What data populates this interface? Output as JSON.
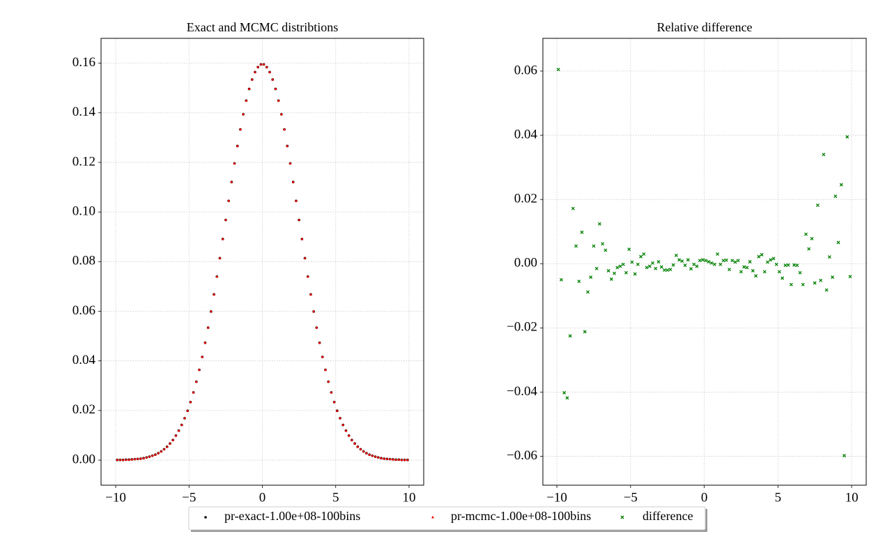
{
  "chart_data": [
    {
      "type": "scatter",
      "title": "Exact and MCMC distribtions",
      "x": [
        -9.9,
        -9.7,
        -9.5,
        -9.3,
        -9.1,
        -8.9,
        -8.7,
        -8.5,
        -8.3,
        -8.1,
        -7.9,
        -7.7,
        -7.5,
        -7.3,
        -7.1,
        -6.9,
        -6.7,
        -6.5,
        -6.3,
        -6.1,
        -5.9,
        -5.7,
        -5.5,
        -5.3,
        -5.1,
        -4.9,
        -4.7,
        -4.5,
        -4.3,
        -4.1,
        -3.9,
        -3.7,
        -3.5,
        -3.3,
        -3.1,
        -2.9,
        -2.7,
        -2.5,
        -2.3,
        -2.1,
        -1.9,
        -1.7,
        -1.5,
        -1.3,
        -1.1,
        -0.9,
        -0.7,
        -0.5,
        -0.3,
        -0.1,
        0.1,
        0.3,
        0.5,
        0.7,
        0.9,
        1.1,
        1.3,
        1.5,
        1.7,
        1.9,
        2.1,
        2.3,
        2.5,
        2.7,
        2.9,
        3.1,
        3.3,
        3.5,
        3.7,
        3.9,
        4.1,
        4.3,
        4.5,
        4.7,
        4.9,
        5.1,
        5.3,
        5.5,
        5.7,
        5.9,
        6.1,
        6.3,
        6.5,
        6.7,
        6.9,
        7.1,
        7.3,
        7.5,
        7.7,
        7.9,
        8.1,
        8.3,
        8.5,
        8.7,
        8.9,
        9.1,
        9.3,
        9.5,
        9.7,
        9.9
      ],
      "series": [
        {
          "name": "pr-exact-1.00e+08-100bins",
          "color": "#000000",
          "marker": "o",
          "values": [
            0.0001,
            0.0001,
            0.0001,
            0.0002,
            0.0002,
            0.0003,
            0.0004,
            0.0005,
            0.0006,
            0.0008,
            0.0011,
            0.0014,
            0.0018,
            0.0022,
            0.0028,
            0.0035,
            0.0044,
            0.0054,
            0.0067,
            0.0081,
            0.0099,
            0.0119,
            0.0142,
            0.0169,
            0.0199,
            0.0234,
            0.0273,
            0.0316,
            0.0364,
            0.0416,
            0.0473,
            0.0534,
            0.0599,
            0.0668,
            0.074,
            0.0814,
            0.0891,
            0.0968,
            0.1045,
            0.1121,
            0.1196,
            0.1266,
            0.1333,
            0.1394,
            0.1449,
            0.1496,
            0.1534,
            0.1564,
            0.1584,
            0.1595,
            0.1595,
            0.1584,
            0.1564,
            0.1534,
            0.1496,
            0.1449,
            0.1394,
            0.1333,
            0.1266,
            0.1196,
            0.1121,
            0.1045,
            0.0968,
            0.0891,
            0.0814,
            0.074,
            0.0668,
            0.0599,
            0.0534,
            0.0473,
            0.0416,
            0.0364,
            0.0316,
            0.0273,
            0.0234,
            0.0199,
            0.0169,
            0.0142,
            0.0119,
            0.0099,
            0.0081,
            0.0067,
            0.0054,
            0.0044,
            0.0035,
            0.0028,
            0.0022,
            0.0018,
            0.0014,
            0.0011,
            0.0008,
            0.0006,
            0.0005,
            0.0004,
            0.0003,
            0.0002,
            0.0002,
            0.0001,
            0.0001,
            0.0001
          ]
        },
        {
          "name": "pr-mcmc-1.00e+08-100bins",
          "color": "#ff0000",
          "marker": "^",
          "values": [
            0.0001,
            0.0001,
            0.0001,
            0.0002,
            0.0002,
            0.0003,
            0.0004,
            0.0005,
            0.0006,
            0.0008,
            0.0011,
            0.0014,
            0.0018,
            0.0022,
            0.0028,
            0.0035,
            0.0044,
            0.0054,
            0.0067,
            0.0081,
            0.0099,
            0.0119,
            0.0142,
            0.0169,
            0.0199,
            0.0234,
            0.0273,
            0.0316,
            0.0364,
            0.0416,
            0.0473,
            0.0534,
            0.0599,
            0.0668,
            0.074,
            0.0814,
            0.0891,
            0.0968,
            0.1045,
            0.1121,
            0.1196,
            0.1266,
            0.1333,
            0.1394,
            0.1449,
            0.1496,
            0.1534,
            0.1564,
            0.1584,
            0.1595,
            0.1595,
            0.1584,
            0.1564,
            0.1534,
            0.1496,
            0.1449,
            0.1394,
            0.1333,
            0.1266,
            0.1196,
            0.1121,
            0.1045,
            0.0968,
            0.0891,
            0.0814,
            0.074,
            0.0668,
            0.0599,
            0.0534,
            0.0473,
            0.0416,
            0.0364,
            0.0316,
            0.0273,
            0.0234,
            0.0199,
            0.0169,
            0.0142,
            0.0119,
            0.0099,
            0.0081,
            0.0067,
            0.0054,
            0.0044,
            0.0035,
            0.0028,
            0.0022,
            0.0018,
            0.0014,
            0.0011,
            0.0008,
            0.0006,
            0.0005,
            0.0004,
            0.0003,
            0.0002,
            0.0002,
            0.0001,
            0.0001,
            0.0001
          ]
        }
      ],
      "xlim": [
        -11,
        11
      ],
      "ylim": [
        -0.0101,
        0.17
      ],
      "xticks": [
        {
          "value": -10,
          "label": "−10"
        },
        {
          "value": -5,
          "label": "−5"
        },
        0,
        5,
        10
      ],
      "yticks": [
        {
          "value": 0,
          "label": "0.00"
        },
        {
          "value": 0.02,
          "label": "0.02"
        },
        {
          "value": 0.04,
          "label": "0.04"
        },
        {
          "value": 0.06,
          "label": "0.06"
        },
        {
          "value": 0.08,
          "label": "0.08"
        },
        {
          "value": 0.1,
          "label": "0.10"
        },
        {
          "value": 0.12,
          "label": "0.12"
        },
        {
          "value": 0.14,
          "label": "0.14"
        },
        {
          "value": 0.16,
          "label": "0.16"
        }
      ],
      "grid": true
    },
    {
      "type": "scatter",
      "title": "Relative difference",
      "x": [
        -9.9,
        -9.7,
        -9.5,
        -9.3,
        -9.1,
        -8.9,
        -8.7,
        -8.5,
        -8.3,
        -8.1,
        -7.9,
        -7.7,
        -7.5,
        -7.3,
        -7.1,
        -6.9,
        -6.7,
        -6.5,
        -6.3,
        -6.1,
        -5.9,
        -5.7,
        -5.5,
        -5.3,
        -5.1,
        -4.9,
        -4.7,
        -4.5,
        -4.3,
        -4.1,
        -3.9,
        -3.7,
        -3.5,
        -3.3,
        -3.1,
        -2.9,
        -2.7,
        -2.5,
        -2.3,
        -2.1,
        -1.9,
        -1.7,
        -1.5,
        -1.3,
        -1.1,
        -0.9,
        -0.7,
        -0.5,
        -0.3,
        -0.1,
        0.1,
        0.3,
        0.5,
        0.7,
        0.9,
        1.1,
        1.3,
        1.5,
        1.7,
        1.9,
        2.1,
        2.3,
        2.5,
        2.7,
        2.9,
        3.1,
        3.3,
        3.5,
        3.7,
        3.9,
        4.1,
        4.3,
        4.5,
        4.7,
        4.9,
        5.1,
        5.3,
        5.5,
        5.7,
        5.9,
        6.1,
        6.3,
        6.5,
        6.7,
        6.9,
        7.1,
        7.3,
        7.5,
        7.7,
        7.9,
        8.1,
        8.3,
        8.5,
        8.7,
        8.9,
        9.1,
        9.3,
        9.5,
        9.7,
        9.9
      ],
      "series": [
        {
          "name": "difference",
          "color": "#008000",
          "marker": "x",
          "values": [
            0.0605,
            -0.005,
            -0.0402,
            -0.0418,
            -0.0225,
            0.0172,
            0.0055,
            -0.0055,
            0.0098,
            -0.0212,
            -0.0088,
            -0.0042,
            0.0055,
            -0.0015,
            0.0124,
            0.0062,
            0.0042,
            -0.0022,
            -0.0048,
            -0.003,
            -0.0012,
            -0.0008,
            -0.0002,
            -0.0028,
            0.0045,
            0.0005,
            -0.0032,
            -0.0002,
            0.0022,
            0.003,
            -0.0012,
            -0.0008,
            0.0002,
            -0.0015,
            0.0006,
            -0.001,
            -0.002,
            -0.002,
            -0.0018,
            -0.0004,
            0.0026,
            0.0012,
            0.0008,
            -0.0005,
            0.0012,
            -0.0016,
            -0.0002,
            -0.0008,
            0.001,
            0.0012,
            0.001,
            0.0006,
            0.0002,
            -0.0002,
            0.003,
            -0.0002,
            0.001,
            0.0011,
            -0.0018,
            0.001,
            0.0005,
            0.001,
            -0.0025,
            -0.001,
            -0.0012,
            0.0006,
            -0.0022,
            -0.0038,
            0.0022,
            0.0028,
            -0.0025,
            0.0005,
            0.0012,
            0.0016,
            -0.0002,
            -0.0025,
            -0.0045,
            -0.0005,
            -0.0004,
            -0.0065,
            -0.0004,
            -0.0005,
            -0.0028,
            -0.0065,
            0.0092,
            0.0046,
            0.0078,
            -0.006,
            0.0182,
            -0.0052,
            0.034,
            -0.0082,
            0.0021,
            -0.0042,
            0.021,
            0.0066,
            0.0246,
            -0.0598,
            0.0395,
            -0.004
          ]
        }
      ],
      "xlim": [
        -10.95,
        10.99
      ],
      "ylim": [
        -0.069,
        0.0702
      ],
      "xticks": [
        {
          "value": -10,
          "label": "−10"
        },
        {
          "value": -5,
          "label": "−5"
        },
        0,
        5,
        10
      ],
      "yticks": [
        {
          "value": -0.06,
          "label": "−0.06"
        },
        {
          "value": -0.04,
          "label": "−0.04"
        },
        {
          "value": -0.02,
          "label": "−0.02"
        },
        {
          "value": 0,
          "label": "0.00"
        },
        {
          "value": 0.02,
          "label": "0.02"
        },
        {
          "value": 0.04,
          "label": "0.04"
        },
        {
          "value": 0.06,
          "label": "0.06"
        }
      ],
      "grid": true
    }
  ],
  "legend_location": "lower center"
}
